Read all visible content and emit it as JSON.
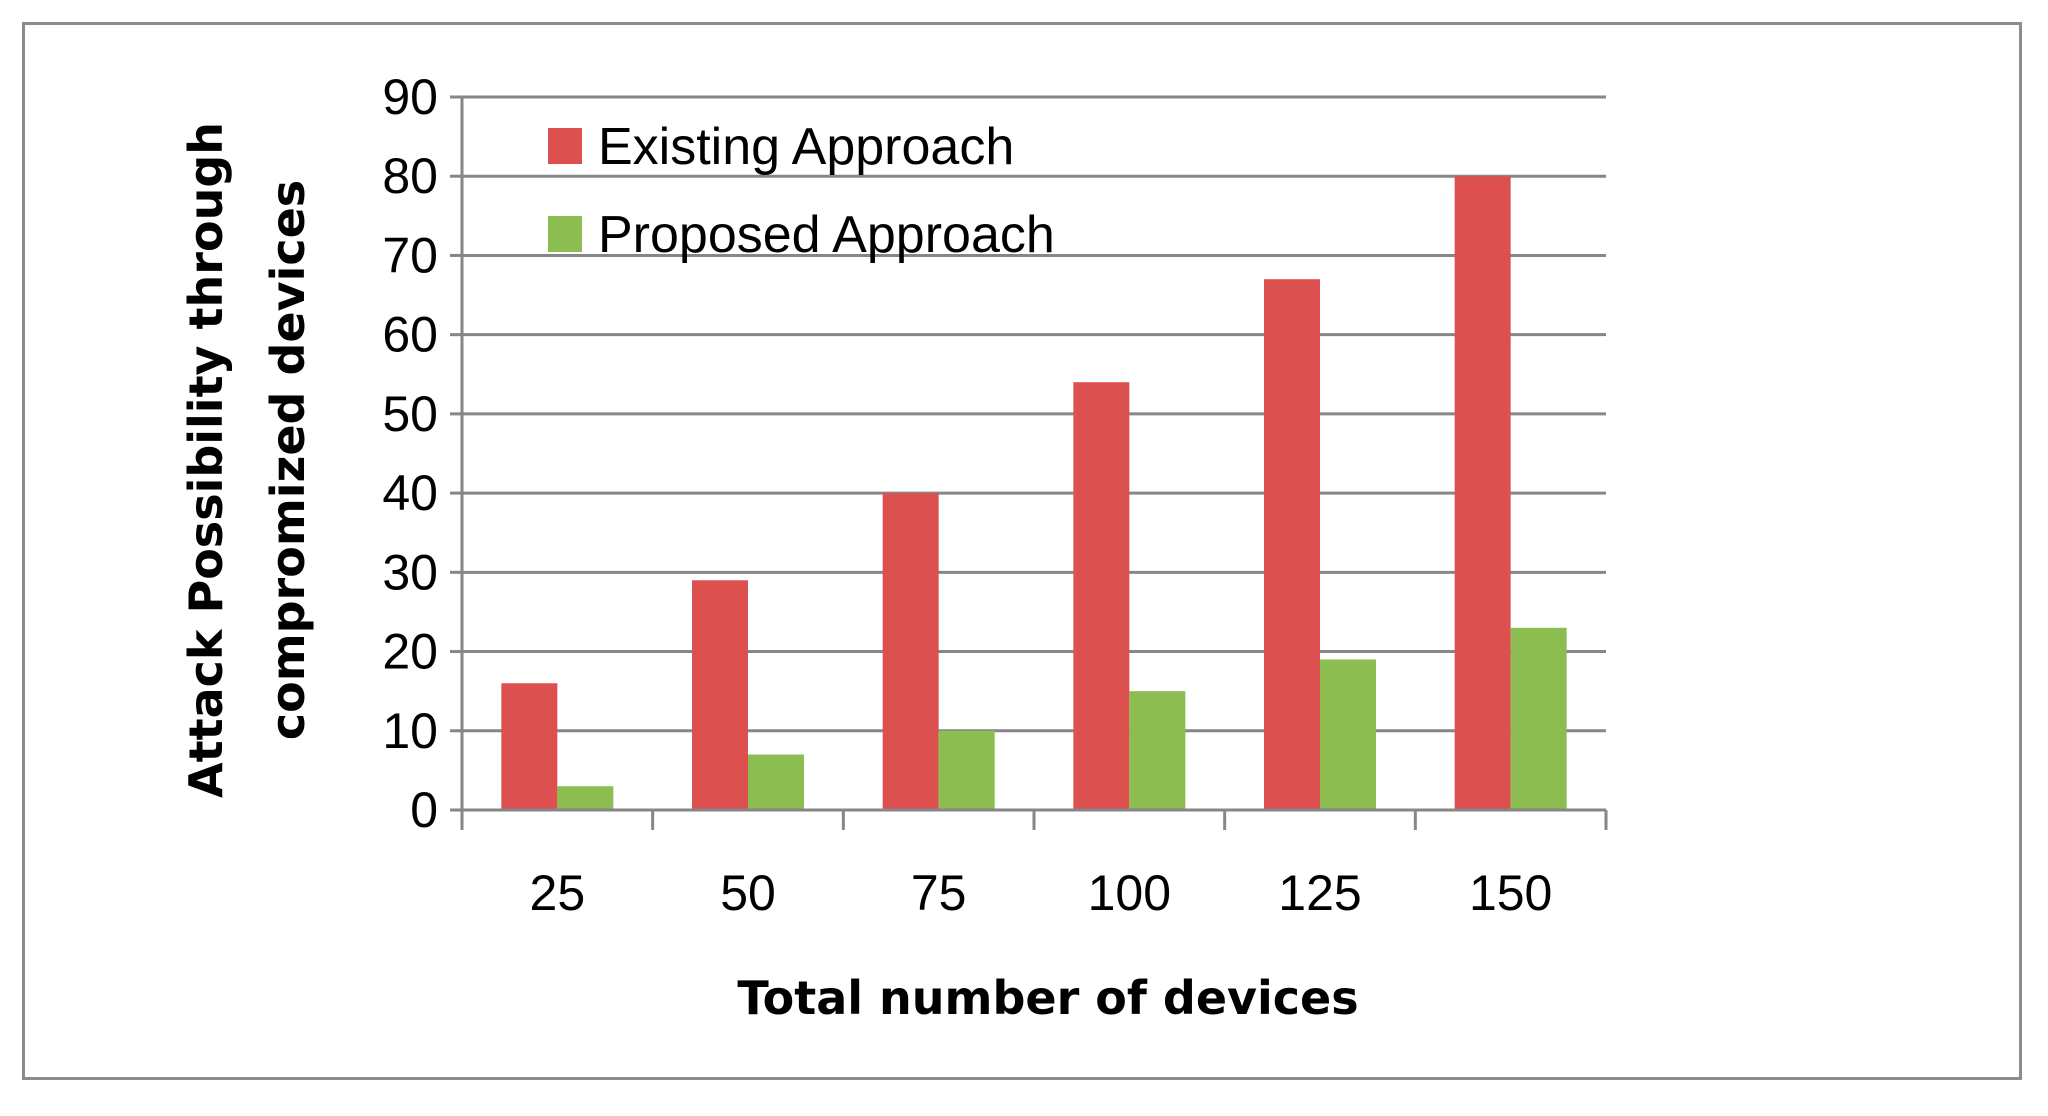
{
  "chart_data": {
    "type": "bar",
    "title": "",
    "xlabel": "Total number of devices",
    "ylabel_lines": [
      "Attack Possibility through",
      "compromized devices"
    ],
    "categories": [
      "25",
      "50",
      "75",
      "100",
      "125",
      "150"
    ],
    "series": [
      {
        "name": "Existing Approach",
        "color": "#dd5050",
        "values": [
          16,
          29,
          40,
          54,
          67,
          80
        ]
      },
      {
        "name": "Proposed Approach",
        "color": "#8bbd50",
        "values": [
          3,
          7,
          10,
          15,
          19,
          23
        ]
      }
    ],
    "ylim": [
      0,
      90
    ],
    "yticks": [
      "0",
      "10",
      "20",
      "30",
      "40",
      "50",
      "60",
      "70",
      "80",
      "90"
    ],
    "grid": true,
    "legend_position": "top-left"
  }
}
